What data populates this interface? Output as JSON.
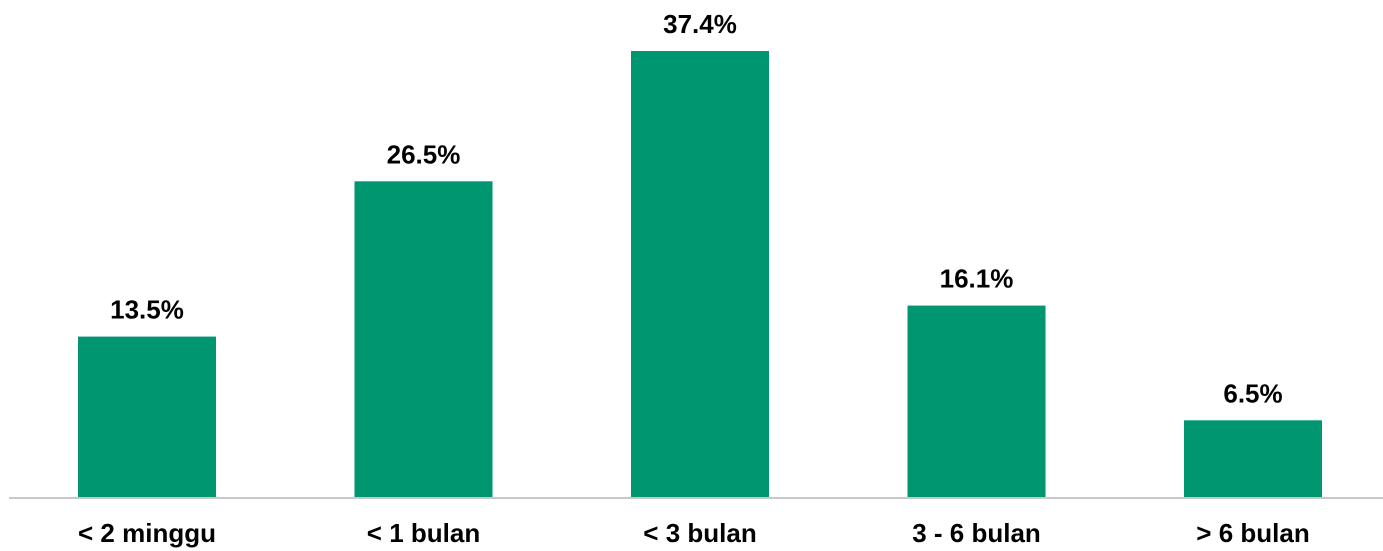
{
  "colors": {
    "bar": "#009670",
    "axis": "#c8c8c8",
    "text": "#000000",
    "background": "#ffffff"
  },
  "chart_data": {
    "type": "bar",
    "title": "",
    "xlabel": "",
    "ylabel": "",
    "categories": [
      "< 2 minggu",
      "< 1 bulan",
      "< 3 bulan",
      "3 - 6 bulan",
      "> 6 bulan"
    ],
    "values": [
      13.5,
      26.5,
      37.4,
      16.1,
      6.5
    ],
    "data_labels": [
      "13.5%",
      "26.5%",
      "37.4%",
      "16.1%",
      "6.5%"
    ],
    "unit": "%",
    "ylim": [
      0,
      37.4
    ],
    "grid": false,
    "legend": "none"
  }
}
